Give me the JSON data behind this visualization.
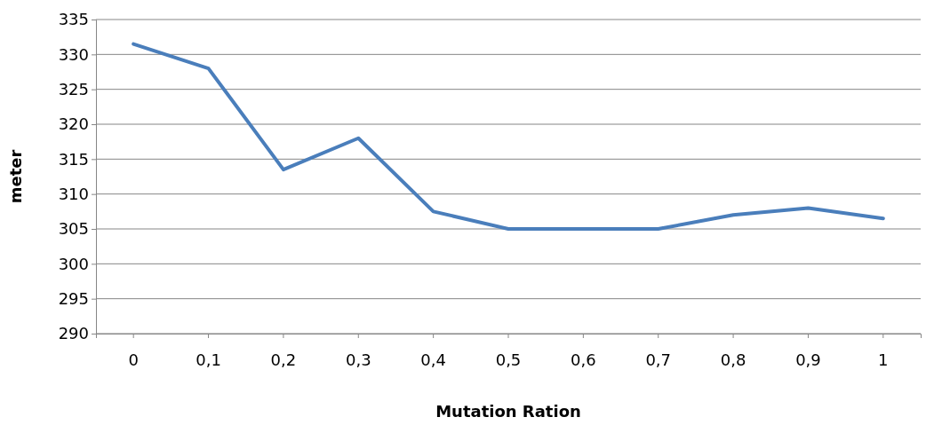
{
  "chart_data": {
    "type": "line",
    "xlabel": "Mutation Ration",
    "ylabel": "meter",
    "categories": [
      "0",
      "0,1",
      "0,2",
      "0,3",
      "0,4",
      "0,5",
      "0,6",
      "0,7",
      "0,8",
      "0,9",
      "1"
    ],
    "series": [
      {
        "color": "#4a7ebb",
        "values": [
          331.5,
          328,
          313.5,
          318,
          307.5,
          305,
          305,
          305,
          307,
          308,
          306.5
        ]
      }
    ],
    "ylim": [
      290,
      335
    ],
    "yticks": [
      290,
      295,
      300,
      305,
      310,
      315,
      320,
      325,
      330,
      335
    ],
    "grid": "y",
    "marker": "none",
    "line_style": "solid"
  }
}
